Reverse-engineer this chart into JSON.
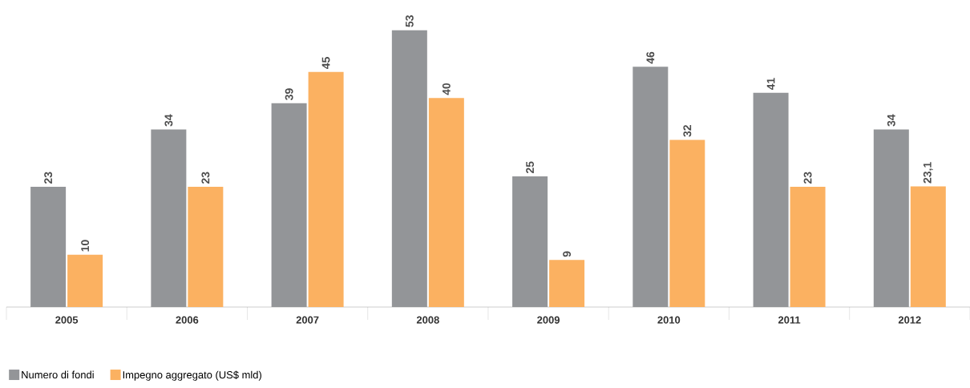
{
  "chart_data": {
    "type": "bar",
    "categories": [
      "2005",
      "2006",
      "2007",
      "2008",
      "2009",
      "2010",
      "2011",
      "2012"
    ],
    "series": [
      {
        "name": "Numero di fondi",
        "color": "#939598",
        "values": [
          23,
          34,
          39,
          53,
          25,
          46,
          41,
          34
        ],
        "value_labels": [
          "23",
          "34",
          "39",
          "53",
          "25",
          "46",
          "41",
          "34"
        ]
      },
      {
        "name": "Impegno aggregato (US$ mld)",
        "color": "#fbb161",
        "values": [
          10,
          23,
          45,
          40,
          9,
          32,
          23,
          23.1
        ],
        "value_labels": [
          "10",
          "23",
          "45",
          "40",
          "9",
          "32",
          "23",
          "23,1"
        ]
      }
    ],
    "legend": "bottom left"
  }
}
